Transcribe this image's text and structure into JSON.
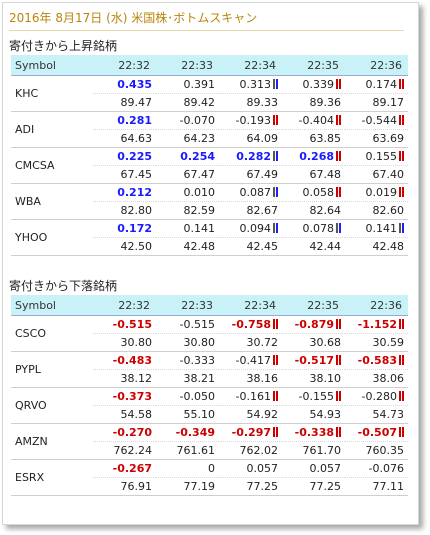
{
  "title": "2016年 8月17日 (水) 米国株･ボトムスキャン",
  "columns": [
    "Symbol",
    "22:32",
    "22:33",
    "22:34",
    "22:35",
    "22:36"
  ],
  "sections": [
    {
      "heading": "寄付きから上昇銘柄",
      "rows": [
        {
          "symbol": "KHC",
          "changes": [
            {
              "v": "0.435",
              "s": "pos"
            },
            {
              "v": "0.391",
              "s": "plain"
            },
            {
              "v": "0.313",
              "s": "plain",
              "m": "up"
            },
            {
              "v": "0.339",
              "s": "plain",
              "m": "dn"
            },
            {
              "v": "0.174",
              "s": "plain",
              "m": "dn"
            }
          ],
          "prices": [
            "89.47",
            "89.42",
            "89.33",
            "89.36",
            "89.17"
          ]
        },
        {
          "symbol": "ADI",
          "changes": [
            {
              "v": "0.281",
              "s": "pos"
            },
            {
              "v": "-0.070",
              "s": "plain"
            },
            {
              "v": "-0.193",
              "s": "plain",
              "m": "dn"
            },
            {
              "v": "-0.404",
              "s": "plain",
              "m": "dn"
            },
            {
              "v": "-0.544",
              "s": "plain",
              "m": "dn"
            }
          ],
          "prices": [
            "64.63",
            "64.23",
            "64.09",
            "63.85",
            "63.69"
          ]
        },
        {
          "symbol": "CMCSA",
          "changes": [
            {
              "v": "0.225",
              "s": "pos"
            },
            {
              "v": "0.254",
              "s": "pos"
            },
            {
              "v": "0.282",
              "s": "pos",
              "m": "up"
            },
            {
              "v": "0.268",
              "s": "pos",
              "m": "dn"
            },
            {
              "v": "0.155",
              "s": "plain",
              "m": "dn"
            }
          ],
          "prices": [
            "67.45",
            "67.47",
            "67.49",
            "67.48",
            "67.40"
          ]
        },
        {
          "symbol": "WBA",
          "changes": [
            {
              "v": "0.212",
              "s": "pos"
            },
            {
              "v": "0.010",
              "s": "plain"
            },
            {
              "v": "0.087",
              "s": "plain",
              "m": "up"
            },
            {
              "v": "0.058",
              "s": "plain",
              "m": "dn"
            },
            {
              "v": "0.019",
              "s": "plain",
              "m": "dn"
            }
          ],
          "prices": [
            "82.80",
            "82.59",
            "82.67",
            "82.64",
            "82.60"
          ]
        },
        {
          "symbol": "YHOO",
          "changes": [
            {
              "v": "0.172",
              "s": "pos"
            },
            {
              "v": "0.141",
              "s": "plain"
            },
            {
              "v": "0.094",
              "s": "plain",
              "m": "up"
            },
            {
              "v": "0.078",
              "s": "plain",
              "m": "up"
            },
            {
              "v": "0.141",
              "s": "plain",
              "m": "up"
            }
          ],
          "prices": [
            "42.50",
            "42.48",
            "42.45",
            "42.44",
            "42.48"
          ]
        }
      ]
    },
    {
      "heading": "寄付きから下落銘柄",
      "rows": [
        {
          "symbol": "CSCO",
          "changes": [
            {
              "v": "-0.515",
              "s": "neg"
            },
            {
              "v": "-0.515",
              "s": "plain"
            },
            {
              "v": "-0.758",
              "s": "neg",
              "m": "dn"
            },
            {
              "v": "-0.879",
              "s": "neg",
              "m": "dn"
            },
            {
              "v": "-1.152",
              "s": "neg",
              "m": "dn"
            }
          ],
          "prices": [
            "30.80",
            "30.80",
            "30.72",
            "30.68",
            "30.59"
          ]
        },
        {
          "symbol": "PYPL",
          "changes": [
            {
              "v": "-0.483",
              "s": "neg"
            },
            {
              "v": "-0.333",
              "s": "plain"
            },
            {
              "v": "-0.417",
              "s": "plain",
              "m": "dn"
            },
            {
              "v": "-0.517",
              "s": "neg",
              "m": "dn"
            },
            {
              "v": "-0.583",
              "s": "neg",
              "m": "dn"
            }
          ],
          "prices": [
            "38.12",
            "38.21",
            "38.16",
            "38.10",
            "38.06"
          ]
        },
        {
          "symbol": "QRVO",
          "changes": [
            {
              "v": "-0.373",
              "s": "neg"
            },
            {
              "v": "-0.050",
              "s": "plain"
            },
            {
              "v": "-0.161",
              "s": "plain",
              "m": "dn"
            },
            {
              "v": "-0.155",
              "s": "plain",
              "m": "dn"
            },
            {
              "v": "-0.280",
              "s": "plain",
              "m": "dn"
            }
          ],
          "prices": [
            "54.58",
            "55.10",
            "54.92",
            "54.93",
            "54.73"
          ]
        },
        {
          "symbol": "AMZN",
          "changes": [
            {
              "v": "-0.270",
              "s": "neg"
            },
            {
              "v": "-0.349",
              "s": "neg"
            },
            {
              "v": "-0.297",
              "s": "neg",
              "m": "dn"
            },
            {
              "v": "-0.338",
              "s": "neg",
              "m": "dn"
            },
            {
              "v": "-0.507",
              "s": "neg",
              "m": "dn"
            }
          ],
          "prices": [
            "762.24",
            "761.61",
            "762.02",
            "761.70",
            "760.35"
          ]
        },
        {
          "symbol": "ESRX",
          "changes": [
            {
              "v": "-0.267",
              "s": "neg"
            },
            {
              "v": "0",
              "s": "plain"
            },
            {
              "v": "0.057",
              "s": "plain"
            },
            {
              "v": "0.057",
              "s": "plain"
            },
            {
              "v": "-0.076",
              "s": "plain"
            }
          ],
          "prices": [
            "76.91",
            "77.19",
            "77.25",
            "77.25",
            "77.11"
          ]
        }
      ]
    }
  ]
}
